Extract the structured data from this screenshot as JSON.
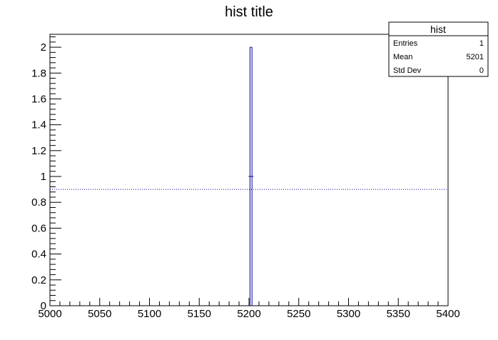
{
  "chart_data": {
    "type": "histogram",
    "title": "hist title",
    "xlabel": "",
    "ylabel": "",
    "xlim": [
      5000,
      5400
    ],
    "ylim": [
      0,
      2.1
    ],
    "x_ticks": [
      5000,
      5050,
      5100,
      5150,
      5200,
      5250,
      5300,
      5350,
      5400
    ],
    "y_ticks": [
      0,
      0.2,
      0.4,
      0.6,
      0.8,
      1,
      1.2,
      1.4,
      1.6,
      1.8,
      2
    ],
    "x_tick_labels": [
      "5000",
      "5050",
      "5100",
      "5150",
      "5200",
      "5250",
      "5300",
      "5350",
      "5400"
    ],
    "y_tick_labels": [
      "0",
      "0.2",
      "0.4",
      "0.6",
      "0.8",
      "1",
      "1.2",
      "1.4",
      "1.6",
      "1.8",
      "2"
    ],
    "grid": false,
    "series": [
      {
        "bin_low": 5201,
        "bin_high": 5203,
        "value": 2,
        "marker_value": 1,
        "color": "#000099"
      }
    ],
    "reference_line": {
      "y": 0.9,
      "style": "dotted",
      "color": "#000099"
    }
  },
  "stats_box": {
    "name": "hist",
    "rows": [
      {
        "label": "Entries",
        "value": "1"
      },
      {
        "label": "Mean",
        "value": "5201"
      },
      {
        "label": "Std Dev",
        "value": "0"
      }
    ]
  }
}
